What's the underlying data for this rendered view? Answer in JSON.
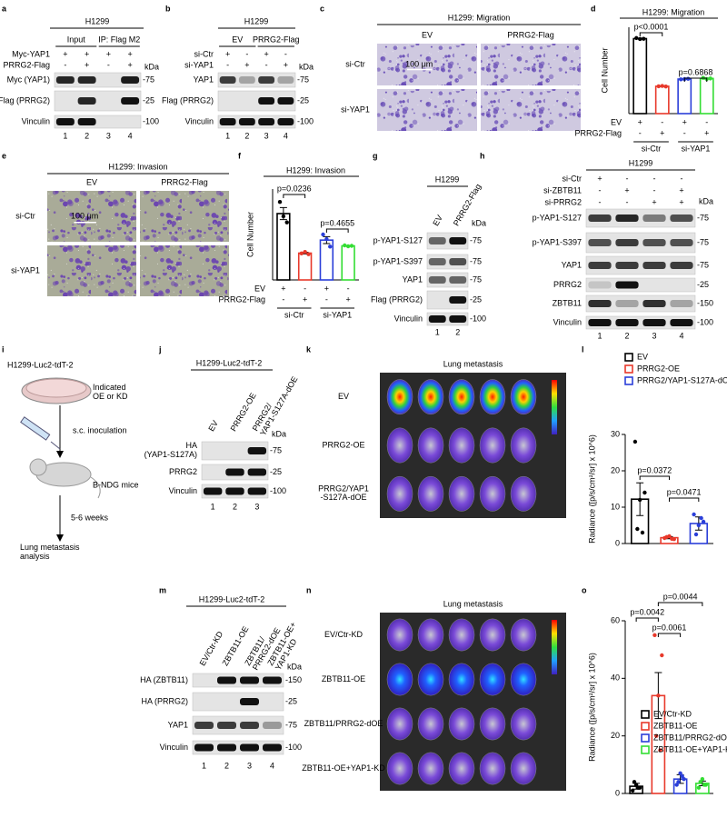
{
  "panels": {
    "a": {
      "letter": "a",
      "title": "H1299",
      "groups": [
        "Input",
        "IP: Flag M2"
      ],
      "conditions": [
        {
          "label": "Myc-YAP1",
          "marks": [
            "+",
            "+",
            "+",
            "+"
          ]
        },
        {
          "label": "PRRG2-Flag",
          "marks": [
            "-",
            "+",
            "-",
            "+"
          ]
        }
      ],
      "kda_unit": "kDa",
      "blots": [
        {
          "label": "Myc (YAP1)",
          "kda": "-75"
        },
        {
          "label": "Flag (PRRG2)",
          "kda": "-25"
        },
        {
          "label": "Vinculin",
          "kda": "-100"
        }
      ],
      "lanes": [
        "1",
        "2",
        "3",
        "4"
      ]
    },
    "b": {
      "letter": "b",
      "title": "H1299",
      "groups": [
        "EV",
        "PRRG2-Flag"
      ],
      "conditions": [
        {
          "label": "si-Ctr",
          "marks": [
            "+",
            "-",
            "+",
            "-"
          ]
        },
        {
          "label": "si-YAP1",
          "marks": [
            "-",
            "+",
            "-",
            "+"
          ]
        }
      ],
      "kda_unit": "kDa",
      "blots": [
        {
          "label": "YAP1",
          "kda": "-75"
        },
        {
          "label": "Flag (PRRG2)",
          "kda": "-25"
        },
        {
          "label": "Vinculin",
          "kda": "-100"
        }
      ],
      "lanes": [
        "1",
        "2",
        "3",
        "4"
      ]
    },
    "c": {
      "letter": "c",
      "title": "H1299: Migration",
      "columns": [
        "EV",
        "PRRG2-Flag"
      ],
      "rows": [
        "si-Ctr",
        "si-YAP1"
      ],
      "scale": "100 μm"
    },
    "e": {
      "letter": "e",
      "title": "H1299: Invasion",
      "columns": [
        "EV",
        "PRRG2-Flag"
      ],
      "rows": [
        "si-Ctr",
        "si-YAP1"
      ],
      "scale": "100 μm"
    },
    "g": {
      "letter": "g",
      "title": "H1299",
      "lane_labels": [
        "EV",
        "PRRG2-Flag"
      ],
      "kda_unit": "kDa",
      "blots": [
        {
          "label": "p-YAP1-S127",
          "kda": "-75"
        },
        {
          "label": "p-YAP1-S397",
          "kda": "-75"
        },
        {
          "label": "YAP1",
          "kda": "-75"
        },
        {
          "label": "Flag (PRRG2)",
          "kda": "-25"
        },
        {
          "label": "Vinculin",
          "kda": "-100"
        }
      ],
      "lanes": [
        "1",
        "2"
      ]
    },
    "h": {
      "letter": "h",
      "title": "H1299",
      "conditions": [
        {
          "label": "si-Ctr",
          "marks": [
            "+",
            "-",
            "-",
            "-"
          ]
        },
        {
          "label": "si-ZBTB11",
          "marks": [
            "-",
            "+",
            "-",
            "+"
          ]
        },
        {
          "label": "si-PRRG2",
          "marks": [
            "-",
            "-",
            "+",
            "+"
          ]
        }
      ],
      "kda_unit": "kDa",
      "blots": [
        {
          "label": "p-YAP1-S127",
          "kda": "-75"
        },
        {
          "label": "p-YAP1-S397",
          "kda": "-75"
        },
        {
          "label": "YAP1",
          "kda": "-75"
        },
        {
          "label": "PRRG2",
          "kda": "-25"
        },
        {
          "label": "ZBTB11",
          "kda": "-150"
        },
        {
          "label": "Vinculin",
          "kda": "-100"
        }
      ],
      "lanes": [
        "1",
        "2",
        "3",
        "4"
      ]
    },
    "i": {
      "letter": "i",
      "cell_line": "H1299-Luc2-tdT-2",
      "dish_label": [
        "Indicated",
        "OE or KD"
      ],
      "injection": "s.c. inoculation",
      "mice": "B-NDG mice",
      "duration": "5-6  weeks",
      "endpoint": [
        "Lung metastasis",
        "analysis"
      ]
    },
    "j": {
      "letter": "j",
      "title": "H1299-Luc2-tdT-2",
      "lane_labels": [
        "EV",
        "PRRG2-OE",
        [
          "PRRG2/",
          "YAP1-S127A-dOE"
        ]
      ],
      "kda_unit": "kDa",
      "blots": [
        {
          "label": [
            "HA",
            "(YAP1-S127A)"
          ],
          "kda": "-75"
        },
        {
          "label": "PRRG2",
          "kda": "-25"
        },
        {
          "label": "Vinculin",
          "kda": "-100"
        }
      ],
      "lanes": [
        "1",
        "2",
        "3"
      ]
    },
    "k": {
      "letter": "k",
      "title": "Lung metastasis",
      "rows": [
        "EV",
        "PRRG2-OE",
        [
          "PRRG2/YAP1",
          "-S127A-dOE"
        ]
      ]
    },
    "m": {
      "letter": "m",
      "title": "H1299-Luc2-tdT-2",
      "lane_labels": [
        "EV/Ctr-KD",
        "ZBTB11-OE",
        [
          "ZBTB11/",
          "PRRG2-dOE"
        ],
        [
          "ZBTB11-OE+",
          "YAP1-KD"
        ]
      ],
      "kda_unit": "kDa",
      "blots": [
        {
          "label": "HA (ZBTB11)",
          "kda": "-150"
        },
        {
          "label": "HA (PRRG2)",
          "kda": "-25"
        },
        {
          "label": "YAP1",
          "kda": "-75"
        },
        {
          "label": "Vinculin",
          "kda": "-100"
        }
      ],
      "lanes": [
        "1",
        "2",
        "3",
        "4"
      ]
    },
    "n": {
      "letter": "n",
      "title": "Lung metastasis",
      "rows": [
        "EV/Ctr-KD",
        "ZBTB11-OE",
        "ZBTB11/PRRG2-dOE",
        "ZBTB11-OE+YAP1-KD"
      ]
    }
  },
  "chart_data": [
    {
      "type": "bar",
      "letter": "d",
      "title": "H1299: Migration",
      "ylabel": "Cell Number",
      "categories": [
        null,
        null,
        null,
        null
      ],
      "values": [
        521,
        190,
        240,
        244
      ],
      "errors": [
        3,
        2,
        2,
        3
      ],
      "points": [
        [
          525,
          520,
          518
        ],
        [
          190,
          188,
          192
        ],
        [
          238,
          242,
          240
        ],
        [
          248,
          244,
          240
        ]
      ],
      "colors": [
        "#000000",
        "#e8392b",
        "#2b3fd9",
        "#33dd33"
      ],
      "ylim": [
        0,
        600
      ],
      "conditions": [
        {
          "label": "EV",
          "marks": [
            "+",
            "-",
            "+",
            "-"
          ]
        },
        {
          "label": "PRRG2-Flag",
          "marks": [
            "-",
            "+",
            "-",
            "+"
          ]
        }
      ],
      "groups": [
        "si-Ctr",
        "si-YAP1"
      ],
      "annotations": [
        "p<0.0001",
        "p=0.6868"
      ]
    },
    {
      "type": "bar",
      "letter": "f",
      "title": "H1299: Invasion",
      "ylabel": "Cell Number",
      "categories": [
        null,
        null,
        null,
        null
      ],
      "values": [
        438,
        177,
        263,
        225
      ],
      "errors": [
        40,
        5,
        23,
        2
      ],
      "points": [
        [
          515,
          380,
          420
        ],
        [
          175,
          170,
          185
        ],
        [
          300,
          220,
          270
        ],
        [
          228,
          225,
          222
        ]
      ],
      "colors": [
        "#000000",
        "#e8392b",
        "#2b3fd9",
        "#33dd33"
      ],
      "ylim": [
        0,
        600
      ],
      "conditions": [
        {
          "label": "EV",
          "marks": [
            "+",
            "-",
            "+",
            "-"
          ]
        },
        {
          "label": "PRRG2-Flag",
          "marks": [
            "-",
            "+",
            "-",
            "+"
          ]
        }
      ],
      "groups": [
        "si-Ctr",
        "si-YAP1"
      ],
      "annotations": [
        "p=0.0236",
        "p=0.4655"
      ]
    },
    {
      "type": "bar",
      "letter": "l",
      "ylabel": "Radiance ([p/s/cm²/sr] x 10^6)",
      "categories": [
        null,
        null,
        null
      ],
      "values": [
        12.2,
        1.6,
        5.5
      ],
      "errors": [
        4.5,
        0.3,
        1.8
      ],
      "points": [
        [
          28,
          14,
          12,
          4,
          3
        ],
        [
          1.5,
          1.2,
          2,
          1.8,
          1.3
        ],
        [
          8,
          6,
          5,
          2.5,
          7
        ]
      ],
      "colors": [
        "#000000",
        "#e8392b",
        "#2b3fd9"
      ],
      "ylim": [
        0,
        30
      ],
      "yticks": [
        0,
        10,
        20,
        30
      ],
      "legend": [
        "EV",
        "PRRG2-OE",
        "PRRG2/YAP1-S127A-dOE"
      ],
      "annotations": [
        "p=0.0372",
        "p=0.0471"
      ]
    },
    {
      "type": "bar",
      "letter": "o",
      "ylabel": "Radiance ([p/s/cm²/sr] x 10^6)",
      "categories": [
        null,
        null,
        null,
        null
      ],
      "values": [
        2.5,
        34,
        5,
        3.5
      ],
      "errors": [
        1,
        8,
        1.5,
        0.8
      ],
      "points": [
        [
          1,
          2,
          3,
          4,
          2
        ],
        [
          55,
          48,
          34,
          20,
          15
        ],
        [
          3,
          5,
          7,
          4,
          6
        ],
        [
          2,
          3,
          5,
          4,
          3
        ]
      ],
      "colors": [
        "#000000",
        "#e8392b",
        "#2b3fd9",
        "#33dd33"
      ],
      "ylim": [
        0,
        60
      ],
      "yticks": [
        0,
        20,
        40,
        60
      ],
      "legend": [
        "EV/Ctr-KD",
        "ZBTB11-OE",
        "ZBTB11/PRRG2-dOE",
        "ZBTB11-OE+YAP1-KD"
      ],
      "annotations": [
        "p=0.0042",
        "p=0.0061",
        "p=0.0044"
      ]
    }
  ]
}
